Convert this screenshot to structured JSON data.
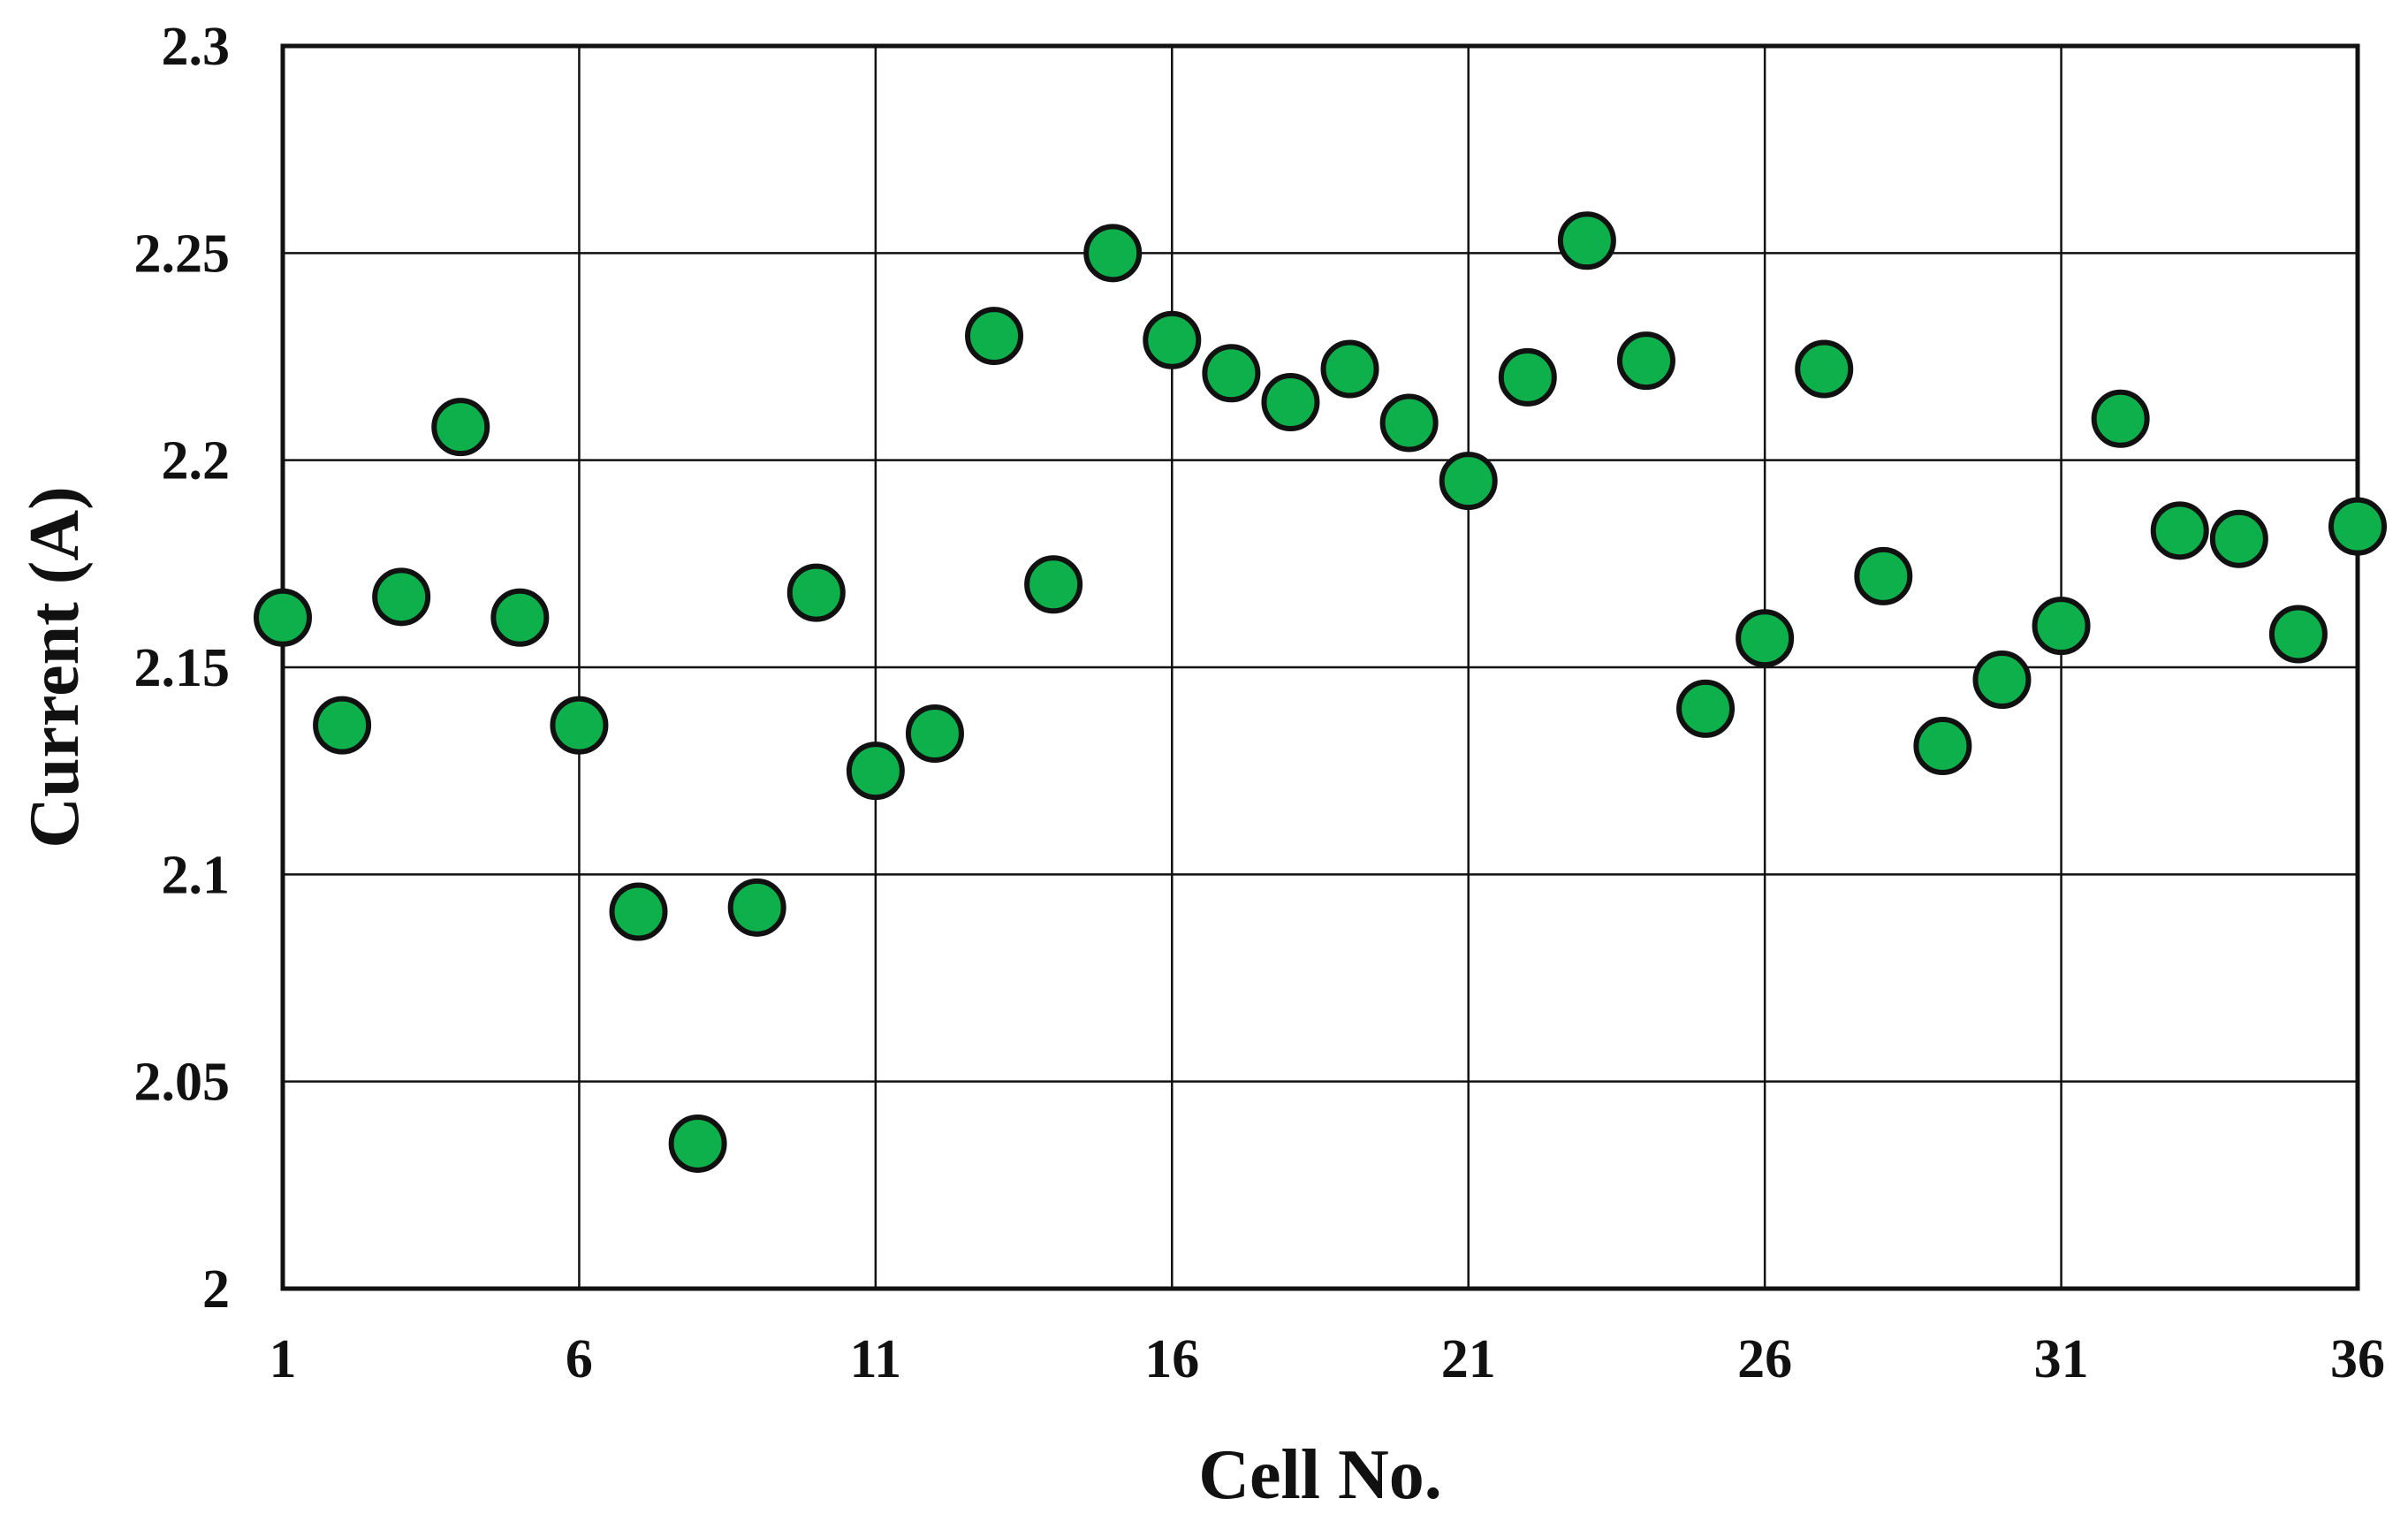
{
  "chart_data": {
    "type": "scatter",
    "title": "",
    "xlabel": "Cell No.",
    "ylabel": "Current (A)",
    "xlim": [
      1,
      36
    ],
    "ylim": [
      2,
      2.3
    ],
    "xticks": [
      1,
      6,
      11,
      16,
      21,
      26,
      31,
      36
    ],
    "xtick_labels": [
      "1",
      "6",
      "11",
      "16",
      "21",
      "26",
      "31",
      "36"
    ],
    "yticks": [
      2,
      2.05,
      2.1,
      2.15,
      2.2,
      2.25,
      2.3
    ],
    "ytick_labels": [
      "2",
      "2.05",
      "2.1",
      "2.15",
      "2.2",
      "2.25",
      "2.3"
    ],
    "grid": true,
    "legend": "none",
    "marker_fill": "#0DB04B",
    "marker_edge": "#111111",
    "series": [
      {
        "x": [
          1,
          2,
          3,
          4,
          5,
          6,
          7,
          8,
          9,
          10,
          11,
          12,
          13,
          14,
          15,
          16,
          17,
          18,
          19,
          20,
          21,
          22,
          23,
          24,
          25,
          26,
          27,
          28,
          29,
          30,
          31,
          32,
          33,
          34,
          35,
          36
        ],
        "y": [
          2.162,
          2.136,
          2.167,
          2.208,
          2.162,
          2.136,
          2.091,
          2.035,
          2.092,
          2.168,
          2.125,
          2.134,
          2.23,
          2.17,
          2.25,
          2.229,
          2.221,
          2.214,
          2.222,
          2.209,
          2.195,
          2.22,
          2.253,
          2.224,
          2.14,
          2.157,
          2.222,
          2.172,
          2.131,
          2.147,
          2.16,
          2.21,
          2.183,
          2.181,
          2.158,
          2.184
        ]
      }
    ]
  }
}
